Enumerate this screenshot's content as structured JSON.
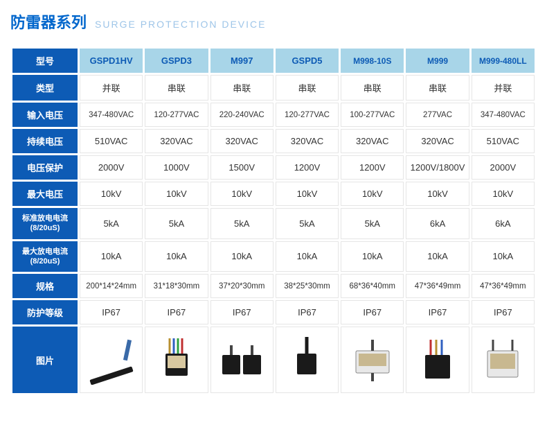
{
  "header": {
    "title_cn": "防雷器系列",
    "title_en": "SURGE PROTECTION DEVICE"
  },
  "colors": {
    "label_bg": "#0d5bb5",
    "header_bg": "#a8d5e8",
    "header_text": "#0d5bb5",
    "cell_border": "#e5e5e5"
  },
  "row_labels": {
    "model": "型号",
    "type": "类型",
    "input_voltage": "输入电压",
    "continuous_voltage": "持续电压",
    "voltage_protection": "电压保护",
    "max_voltage": "最大电压",
    "nominal_discharge": "标准放电电流\n(8/20uS)",
    "max_discharge": "最大放电电流\n(8/20uS)",
    "dimensions": "规格",
    "protection_rating": "防护等级",
    "picture": "图片"
  },
  "products": [
    {
      "model": "GSPD1HV",
      "type": "并联",
      "input_voltage": "347-480VAC",
      "continuous_voltage": "510VAC",
      "voltage_protection": "2000V",
      "max_voltage": "10kV",
      "nominal_discharge": "5kA",
      "max_discharge": "10kA",
      "dimensions": "200*14*24mm",
      "protection_rating": "IP67",
      "img_type": "strip"
    },
    {
      "model": "GSPD3",
      "type": "串联",
      "input_voltage": "120-277VAC",
      "continuous_voltage": "320VAC",
      "voltage_protection": "1000V",
      "max_voltage": "10kV",
      "nominal_discharge": "5kA",
      "max_discharge": "10kA",
      "dimensions": "31*18*30mm",
      "protection_rating": "IP67",
      "img_type": "smallbox"
    },
    {
      "model": "M997",
      "type": "串联",
      "input_voltage": "220-240VAC",
      "continuous_voltage": "320VAC",
      "voltage_protection": "1500V",
      "max_voltage": "10kV",
      "nominal_discharge": "5kA",
      "max_discharge": "10kA",
      "dimensions": "37*20*30mm",
      "protection_rating": "IP67",
      "img_type": "twinbox"
    },
    {
      "model": "GSPD5",
      "type": "串联",
      "input_voltage": "120-277VAC",
      "continuous_voltage": "320VAC",
      "voltage_protection": "1200V",
      "max_voltage": "10kV",
      "nominal_discharge": "5kA",
      "max_discharge": "10kA",
      "dimensions": "38*25*30mm",
      "protection_rating": "IP67",
      "img_type": "cablebox"
    },
    {
      "model": "M998-10S",
      "type": "串联",
      "input_voltage": "100-277VAC",
      "continuous_voltage": "320VAC",
      "voltage_protection": "1200V",
      "max_voltage": "10kV",
      "nominal_discharge": "5kA",
      "max_discharge": "10kA",
      "dimensions": "68*36*40mm",
      "protection_rating": "IP67",
      "img_type": "widebox"
    },
    {
      "model": "M999",
      "type": "串联",
      "input_voltage": "277VAC",
      "continuous_voltage": "320VAC",
      "voltage_protection": "1200V/1800V",
      "max_voltage": "10kV",
      "nominal_discharge": "6kA",
      "max_discharge": "10kA",
      "dimensions": "47*36*49mm",
      "protection_rating": "IP67",
      "img_type": "wirebox"
    },
    {
      "model": "M999-480LL",
      "type": "并联",
      "input_voltage": "347-480VAC",
      "continuous_voltage": "510VAC",
      "voltage_protection": "2000V",
      "max_voltage": "10kV",
      "nominal_discharge": "6kA",
      "max_discharge": "10kA",
      "dimensions": "47*36*49mm",
      "protection_rating": "IP67",
      "img_type": "widebox2"
    }
  ]
}
